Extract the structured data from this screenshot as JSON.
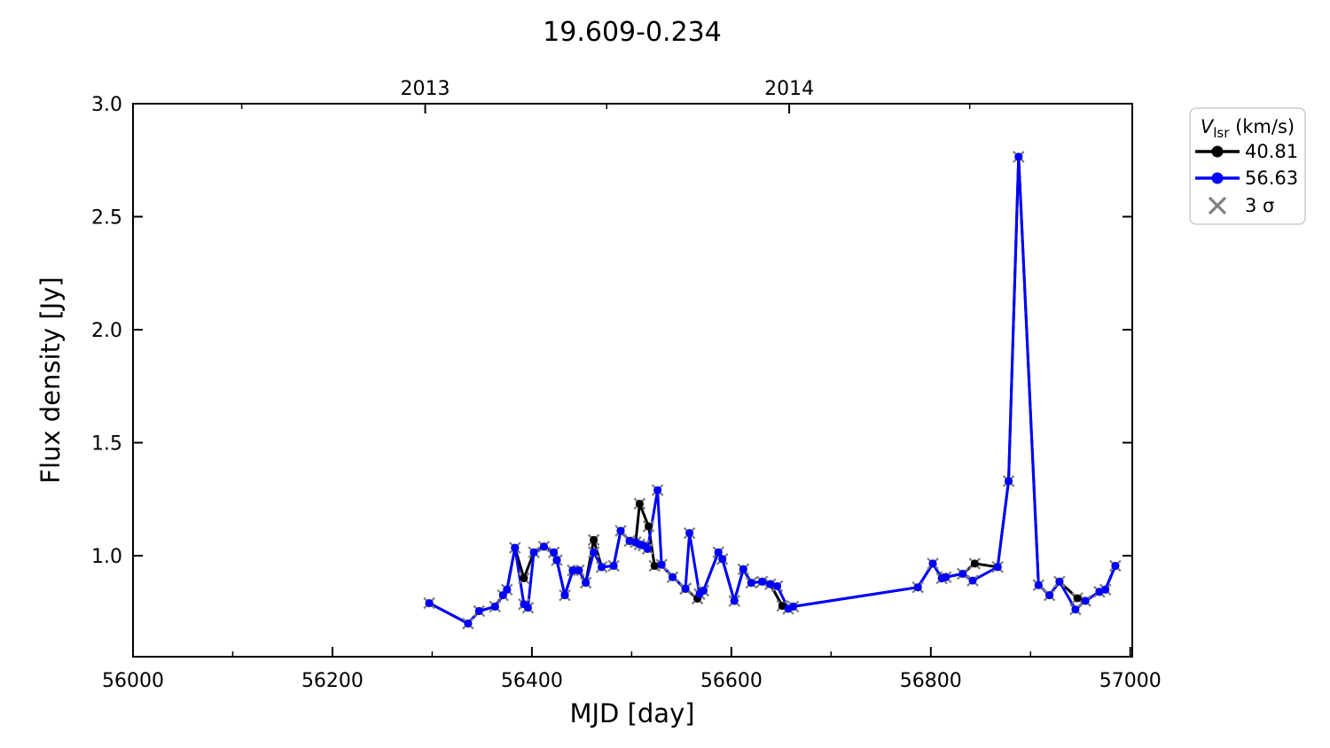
{
  "title": "19.609-0.234",
  "colors": {
    "black_series": "#000000",
    "blue_series": "#0000ff",
    "sigma": "#808080",
    "legend_border": "#cccccc",
    "axis": "#000000"
  },
  "axes": {
    "x": {
      "label": "MJD [day]",
      "min": 56000,
      "max": 57002,
      "major_ticks": [
        {
          "v": 56000,
          "label": "56000"
        },
        {
          "v": 56200,
          "label": "56200"
        },
        {
          "v": 56400,
          "label": "56400"
        },
        {
          "v": 56600,
          "label": "56600"
        },
        {
          "v": 56800,
          "label": "56800"
        },
        {
          "v": 57000,
          "label": "57000"
        }
      ],
      "minor_ticks": [
        56100,
        56300,
        56500,
        56700,
        56900
      ]
    },
    "x_top": {
      "major_ticks": [
        {
          "v": 56293,
          "label": "2013"
        },
        {
          "v": 56658,
          "label": "2014"
        }
      ],
      "minor_ticks": [
        56109,
        56475,
        56839
      ]
    },
    "y": {
      "label": "Flux density [Jy]",
      "min": 0.553,
      "max": 3.0,
      "major_ticks": [
        {
          "v": 1.0,
          "label": "1.0"
        },
        {
          "v": 1.5,
          "label": "1.5"
        },
        {
          "v": 2.0,
          "label": "2.0"
        },
        {
          "v": 2.5,
          "label": "2.5"
        },
        {
          "v": 3.0,
          "label": "3.0"
        }
      ]
    }
  },
  "legend": {
    "title_var": "V",
    "title_sub": "lsr",
    "title_unit": " (km/s)",
    "entries": [
      {
        "label": "40.81",
        "color": "#000000",
        "marker": "line-dot"
      },
      {
        "label": "56.63",
        "color": "#0000ff",
        "marker": "line-dot"
      },
      {
        "label": "3 σ",
        "color": "#808080",
        "marker": "x"
      }
    ]
  },
  "chart_data": {
    "type": "line",
    "title": "19.609-0.234",
    "xlabel": "MJD [day]",
    "ylabel": "Flux density [Jy]",
    "xlim": [
      56000,
      57002
    ],
    "ylim": [
      0.55,
      3.0
    ],
    "grid": false,
    "legend_position": "outside-upper-right",
    "top_axis_year_ticks": [
      "2013",
      "2014"
    ],
    "sigma_marker_note": "gray x marker (3 sigma) drawn at every data point of both series",
    "series": [
      {
        "name": "40.81",
        "color": "#000000",
        "points": [
          [
            56297,
            0.79
          ],
          [
            56336,
            0.7
          ],
          [
            56347,
            0.755
          ],
          [
            56363,
            0.775
          ],
          [
            56371,
            0.825
          ],
          [
            56375,
            0.85
          ],
          [
            56383,
            1.035
          ],
          [
            56392,
            0.9
          ],
          [
            56402,
            1.015
          ],
          [
            56412,
            1.04
          ],
          [
            56422,
            1.015
          ],
          [
            56425,
            0.98
          ],
          [
            56433,
            0.825
          ],
          [
            56441,
            0.935
          ],
          [
            56447,
            0.935
          ],
          [
            56454,
            0.88
          ],
          [
            56462,
            1.07
          ],
          [
            56470,
            0.95
          ],
          [
            56482,
            0.955
          ],
          [
            56489,
            1.11
          ],
          [
            56498,
            1.065
          ],
          [
            56504,
            1.06
          ],
          [
            56508,
            1.23
          ],
          [
            56517,
            1.13
          ],
          [
            56523,
            0.955
          ],
          [
            56530,
            0.96
          ],
          [
            56541,
            0.905
          ],
          [
            56554,
            0.853
          ],
          [
            56566,
            0.81
          ],
          [
            56572,
            0.845
          ],
          [
            56587,
            1.015
          ],
          [
            56591,
            0.985
          ],
          [
            56603,
            0.8
          ],
          [
            56612,
            0.94
          ],
          [
            56620,
            0.88
          ],
          [
            56631,
            0.885
          ],
          [
            56639,
            0.874
          ],
          [
            56651,
            0.778
          ],
          [
            56662,
            0.775
          ],
          [
            56787,
            0.86
          ],
          [
            56802,
            0.965
          ],
          [
            56811,
            0.9
          ],
          [
            56815,
            0.905
          ],
          [
            56832,
            0.92
          ],
          [
            56844,
            0.965
          ],
          [
            56867,
            0.95
          ],
          [
            56878,
            1.33
          ],
          [
            56888,
            2.765
          ],
          [
            56908,
            0.87
          ],
          [
            56919,
            0.825
          ],
          [
            56929,
            0.885
          ],
          [
            56947,
            0.812
          ],
          [
            56955,
            0.8
          ],
          [
            56969,
            0.84
          ],
          [
            56975,
            0.85
          ],
          [
            56985,
            0.955
          ]
        ]
      },
      {
        "name": "56.63",
        "color": "#0000ff",
        "points": [
          [
            56297,
            0.79
          ],
          [
            56336,
            0.7
          ],
          [
            56347,
            0.755
          ],
          [
            56363,
            0.775
          ],
          [
            56371,
            0.825
          ],
          [
            56375,
            0.85
          ],
          [
            56383,
            1.035
          ],
          [
            56392,
            0.785
          ],
          [
            56396,
            0.77
          ],
          [
            56402,
            1.015
          ],
          [
            56412,
            1.04
          ],
          [
            56422,
            1.015
          ],
          [
            56425,
            0.98
          ],
          [
            56433,
            0.825
          ],
          [
            56441,
            0.935
          ],
          [
            56447,
            0.935
          ],
          [
            56454,
            0.88
          ],
          [
            56462,
            1.015
          ],
          [
            56470,
            0.95
          ],
          [
            56482,
            0.955
          ],
          [
            56489,
            1.11
          ],
          [
            56498,
            1.065
          ],
          [
            56504,
            1.06
          ],
          [
            56508,
            1.05
          ],
          [
            56512,
            1.045
          ],
          [
            56516,
            1.03
          ],
          [
            56526,
            1.29
          ],
          [
            56530,
            0.96
          ],
          [
            56541,
            0.905
          ],
          [
            56554,
            0.855
          ],
          [
            56558,
            1.1
          ],
          [
            56568,
            0.83
          ],
          [
            56572,
            0.845
          ],
          [
            56587,
            1.015
          ],
          [
            56591,
            0.985
          ],
          [
            56603,
            0.8
          ],
          [
            56612,
            0.94
          ],
          [
            56620,
            0.88
          ],
          [
            56631,
            0.885
          ],
          [
            56639,
            0.874
          ],
          [
            56646,
            0.865
          ],
          [
            56657,
            0.765
          ],
          [
            56662,
            0.775
          ],
          [
            56787,
            0.86
          ],
          [
            56802,
            0.965
          ],
          [
            56811,
            0.9
          ],
          [
            56815,
            0.905
          ],
          [
            56832,
            0.92
          ],
          [
            56842,
            0.89
          ],
          [
            56867,
            0.95
          ],
          [
            56878,
            1.33
          ],
          [
            56888,
            2.765
          ],
          [
            56908,
            0.87
          ],
          [
            56919,
            0.825
          ],
          [
            56929,
            0.885
          ],
          [
            56945,
            0.762
          ],
          [
            56955,
            0.8
          ],
          [
            56969,
            0.84
          ],
          [
            56975,
            0.85
          ],
          [
            56985,
            0.955
          ]
        ]
      }
    ]
  }
}
